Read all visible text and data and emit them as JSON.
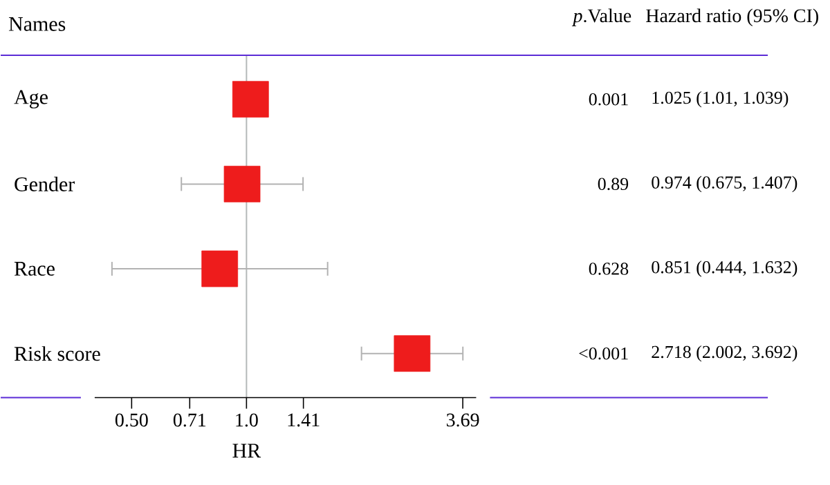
{
  "chart_data": {
    "type": "scatter",
    "orientation": "horizontal",
    "ylabel": "Names",
    "xlabel": "HR",
    "categories": [
      "Age",
      "Gender",
      "Race",
      "Risk score"
    ],
    "values": [
      1.025,
      0.974,
      0.851,
      2.718
    ],
    "errors": [
      null,
      [
        0.675,
        1.407
      ],
      [
        0.444,
        1.632
      ],
      [
        2.002,
        3.692
      ]
    ],
    "color": "#ee1c1c",
    "marker": "square",
    "log": "x",
    "grid": false,
    "xlim": [
      0.4,
      4
    ],
    "xticks": [
      {
        "value": 0.5,
        "label": "0.50"
      },
      0.71,
      {
        "value": 1,
        "label": "1.0"
      },
      1.41,
      3.69
    ],
    "ref_lines": [
      {
        "axis": "x",
        "value": 1,
        "color": "#b4b8b8"
      }
    ],
    "annotations": [
      "*p*.Value",
      "Hazard ratio (95% CI)",
      "0.001",
      "1.025 (1.01, 1.039)",
      "0.89",
      "0.974 (0.675, 1.407)",
      "0.628",
      "0.851 (0.444, 1.632)",
      "<0.001",
      "2.718 (2.002, 3.692)"
    ]
  }
}
